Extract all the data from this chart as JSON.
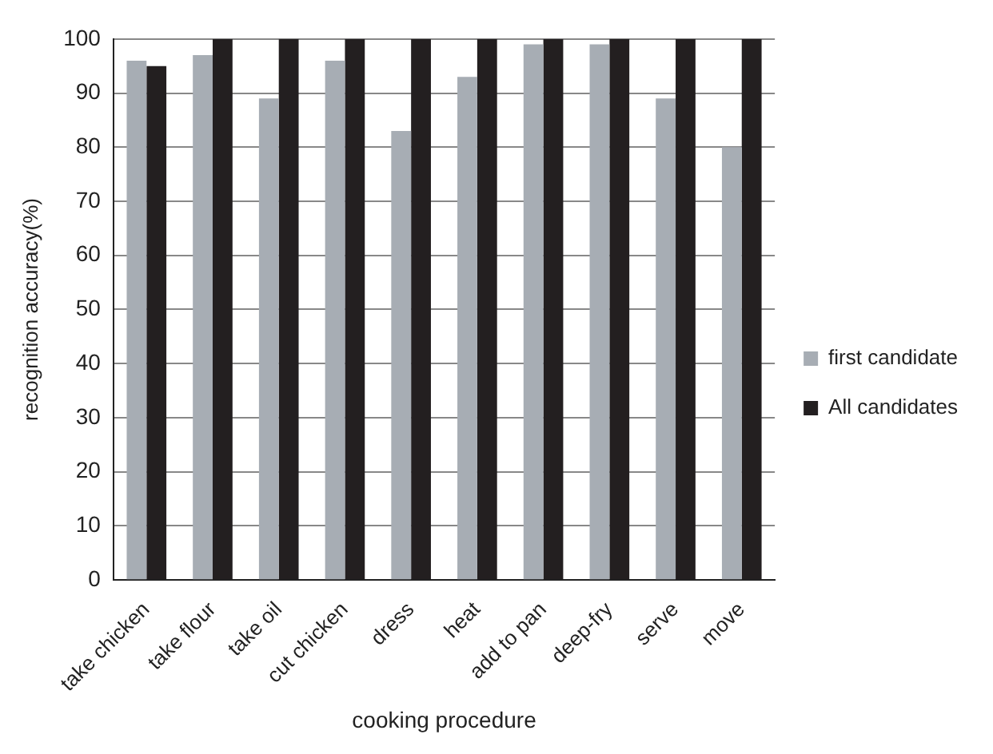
{
  "chart_data": {
    "type": "bar",
    "xlabel": "cooking procedure",
    "ylabel": "recognition accuracy(%)",
    "categories": [
      "take chicken",
      "take flour",
      "take oil",
      "cut chicken",
      "dress",
      "heat",
      "add to pan",
      "deep-fry",
      "serve",
      "move"
    ],
    "series": [
      {
        "name": "first candidate",
        "color": "#a7adb4",
        "values": [
          96,
          97,
          89,
          96,
          83,
          93,
          99,
          99,
          89,
          80
        ]
      },
      {
        "name": "All candidates",
        "color": "#231f20",
        "values": [
          95,
          100,
          100,
          100,
          100,
          100,
          100,
          100,
          100,
          100
        ]
      }
    ],
    "ylim": [
      0,
      100
    ],
    "yticks": [
      0,
      10,
      20,
      30,
      40,
      50,
      60,
      70,
      80,
      90,
      100
    ],
    "grid": "y",
    "legend": "right"
  }
}
